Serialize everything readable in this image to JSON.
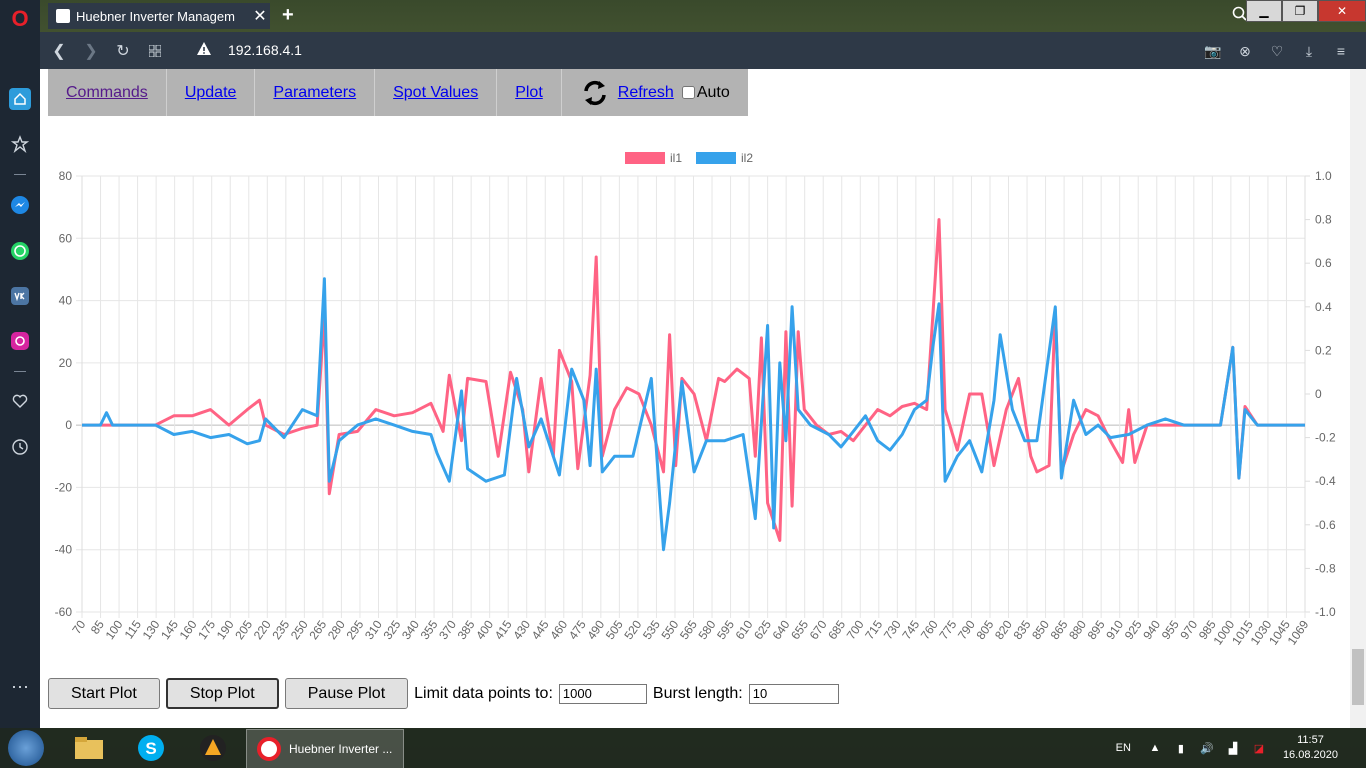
{
  "browser": {
    "tab_title": "Huebner Inverter Managem",
    "url": "192.168.4.1"
  },
  "nav": {
    "items": [
      "Commands",
      "Update",
      "Parameters",
      "Spot Values",
      "Plot"
    ],
    "refresh_label": "Refresh",
    "auto_label": "Auto",
    "auto_checked": false
  },
  "page": {
    "heading": "Plot"
  },
  "chart_data": {
    "type": "line",
    "legend_position": "top-center",
    "grid": true,
    "y_left": {
      "ticks": [
        80,
        60,
        40,
        20,
        0,
        -20,
        -40,
        -60
      ],
      "range": [
        -60,
        80
      ]
    },
    "y_right": {
      "ticks": [
        "1.0",
        "0.8",
        "0.6",
        "0.4",
        "0.2",
        "0",
        "-0.2",
        "-0.4",
        "-0.6",
        "-0.8",
        "-1.0"
      ],
      "range": [
        -1.0,
        1.0
      ]
    },
    "x": {
      "range": [
        70,
        1069
      ],
      "tick_labels": [
        "70",
        "85",
        "100",
        "115",
        "130",
        "145",
        "160",
        "175",
        "190",
        "205",
        "220",
        "235",
        "250",
        "265",
        "280",
        "295",
        "310",
        "325",
        "340",
        "355",
        "370",
        "385",
        "400",
        "415",
        "430",
        "445",
        "460",
        "475",
        "490",
        "505",
        "520",
        "535",
        "550",
        "565",
        "580",
        "595",
        "610",
        "625",
        "640",
        "655",
        "670",
        "685",
        "700",
        "715",
        "730",
        "745",
        "760",
        "775",
        "790",
        "805",
        "820",
        "835",
        "850",
        "865",
        "880",
        "895",
        "910",
        "925",
        "940",
        "955",
        "970",
        "985",
        "1000",
        "1015",
        "1030",
        "1045",
        "1069"
      ]
    },
    "series": [
      {
        "name": "il1",
        "color": "#ff6384",
        "points": [
          [
            70,
            0
          ],
          [
            85,
            0
          ],
          [
            100,
            0
          ],
          [
            130,
            0
          ],
          [
            145,
            3
          ],
          [
            160,
            3
          ],
          [
            175,
            5
          ],
          [
            190,
            0
          ],
          [
            205,
            5
          ],
          [
            215,
            8
          ],
          [
            220,
            0
          ],
          [
            235,
            -3
          ],
          [
            250,
            -1
          ],
          [
            262,
            0
          ],
          [
            268,
            36
          ],
          [
            272,
            -22
          ],
          [
            280,
            -3
          ],
          [
            295,
            -2
          ],
          [
            310,
            5
          ],
          [
            325,
            3
          ],
          [
            340,
            4
          ],
          [
            355,
            7
          ],
          [
            365,
            -2
          ],
          [
            370,
            16
          ],
          [
            380,
            -5
          ],
          [
            385,
            15
          ],
          [
            400,
            14
          ],
          [
            410,
            -10
          ],
          [
            420,
            17
          ],
          [
            430,
            5
          ],
          [
            435,
            -15
          ],
          [
            445,
            15
          ],
          [
            455,
            -10
          ],
          [
            460,
            24
          ],
          [
            470,
            14
          ],
          [
            475,
            -14
          ],
          [
            485,
            16
          ],
          [
            490,
            54
          ],
          [
            495,
            -10
          ],
          [
            505,
            5
          ],
          [
            515,
            12
          ],
          [
            525,
            10
          ],
          [
            535,
            0
          ],
          [
            545,
            -15
          ],
          [
            550,
            29
          ],
          [
            555,
            -13
          ],
          [
            560,
            15
          ],
          [
            570,
            10
          ],
          [
            580,
            -5
          ],
          [
            590,
            15
          ],
          [
            595,
            14
          ],
          [
            605,
            18
          ],
          [
            615,
            15
          ],
          [
            620,
            -10
          ],
          [
            625,
            28
          ],
          [
            630,
            -25
          ],
          [
            640,
            -37
          ],
          [
            645,
            30
          ],
          [
            650,
            -26
          ],
          [
            655,
            30
          ],
          [
            660,
            5
          ],
          [
            670,
            0
          ],
          [
            680,
            -3
          ],
          [
            690,
            -2
          ],
          [
            700,
            -5
          ],
          [
            710,
            0
          ],
          [
            720,
            5
          ],
          [
            730,
            3
          ],
          [
            740,
            6
          ],
          [
            750,
            7
          ],
          [
            760,
            5
          ],
          [
            765,
            35
          ],
          [
            770,
            66
          ],
          [
            775,
            5
          ],
          [
            785,
            -8
          ],
          [
            795,
            10
          ],
          [
            805,
            10
          ],
          [
            815,
            -13
          ],
          [
            825,
            5
          ],
          [
            835,
            15
          ],
          [
            845,
            -10
          ],
          [
            850,
            -15
          ],
          [
            860,
            -13
          ],
          [
            865,
            37
          ],
          [
            870,
            -15
          ],
          [
            880,
            -3
          ],
          [
            890,
            5
          ],
          [
            900,
            3
          ],
          [
            910,
            -5
          ],
          [
            920,
            -12
          ],
          [
            925,
            5
          ],
          [
            930,
            -12
          ],
          [
            940,
            0
          ],
          [
            955,
            0
          ],
          [
            970,
            0
          ],
          [
            985,
            0
          ],
          [
            1000,
            0
          ],
          [
            1010,
            25
          ],
          [
            1015,
            -17
          ],
          [
            1020,
            6
          ],
          [
            1030,
            0
          ],
          [
            1045,
            0
          ],
          [
            1069,
            0
          ]
        ]
      },
      {
        "name": "il2",
        "color": "#36a2eb",
        "points": [
          [
            70,
            0
          ],
          [
            85,
            0
          ],
          [
            90,
            4
          ],
          [
            95,
            0
          ],
          [
            115,
            0
          ],
          [
            130,
            0
          ],
          [
            145,
            -3
          ],
          [
            160,
            -2
          ],
          [
            175,
            -4
          ],
          [
            190,
            -3
          ],
          [
            205,
            -6
          ],
          [
            215,
            -5
          ],
          [
            220,
            2
          ],
          [
            235,
            -4
          ],
          [
            250,
            5
          ],
          [
            262,
            3
          ],
          [
            268,
            47
          ],
          [
            272,
            -18
          ],
          [
            280,
            -5
          ],
          [
            295,
            0
          ],
          [
            310,
            2
          ],
          [
            325,
            0
          ],
          [
            340,
            -2
          ],
          [
            355,
            -3
          ],
          [
            360,
            -9
          ],
          [
            370,
            -18
          ],
          [
            380,
            11
          ],
          [
            385,
            -14
          ],
          [
            400,
            -18
          ],
          [
            415,
            -16
          ],
          [
            425,
            15
          ],
          [
            435,
            -7
          ],
          [
            445,
            2
          ],
          [
            460,
            -16
          ],
          [
            470,
            18
          ],
          [
            480,
            8
          ],
          [
            485,
            -13
          ],
          [
            490,
            18
          ],
          [
            495,
            -15
          ],
          [
            505,
            -10
          ],
          [
            520,
            -10
          ],
          [
            535,
            15
          ],
          [
            545,
            -40
          ],
          [
            550,
            -25
          ],
          [
            560,
            14
          ],
          [
            570,
            -15
          ],
          [
            580,
            -5
          ],
          [
            595,
            -5
          ],
          [
            610,
            -3
          ],
          [
            620,
            -30
          ],
          [
            630,
            32
          ],
          [
            635,
            -33
          ],
          [
            640,
            20
          ],
          [
            645,
            -5
          ],
          [
            650,
            38
          ],
          [
            655,
            5
          ],
          [
            665,
            0
          ],
          [
            680,
            -3
          ],
          [
            690,
            -7
          ],
          [
            700,
            -2
          ],
          [
            710,
            3
          ],
          [
            720,
            -5
          ],
          [
            730,
            -8
          ],
          [
            740,
            -3
          ],
          [
            750,
            5
          ],
          [
            760,
            8
          ],
          [
            765,
            25
          ],
          [
            770,
            39
          ],
          [
            775,
            -18
          ],
          [
            785,
            -10
          ],
          [
            795,
            -5
          ],
          [
            805,
            -15
          ],
          [
            815,
            8
          ],
          [
            820,
            29
          ],
          [
            830,
            5
          ],
          [
            840,
            -5
          ],
          [
            850,
            -5
          ],
          [
            865,
            38
          ],
          [
            870,
            -17
          ],
          [
            880,
            8
          ],
          [
            890,
            -3
          ],
          [
            900,
            0
          ],
          [
            910,
            -4
          ],
          [
            925,
            -3
          ],
          [
            940,
            0
          ],
          [
            955,
            2
          ],
          [
            970,
            0
          ],
          [
            985,
            0
          ],
          [
            1000,
            0
          ],
          [
            1010,
            25
          ],
          [
            1015,
            -17
          ],
          [
            1020,
            5
          ],
          [
            1030,
            0
          ],
          [
            1045,
            0
          ],
          [
            1069,
            0
          ]
        ]
      }
    ]
  },
  "controls": {
    "start_label": "Start Plot",
    "stop_label": "Stop Plot",
    "pause_label": "Pause Plot",
    "limit_label": "Limit data points to:",
    "limit_value": "1000",
    "burst_label": "Burst length:",
    "burst_value": "10"
  },
  "taskbar": {
    "active_window": "Huebner Inverter ...",
    "language": "EN",
    "time": "11:57",
    "date": "16.08.2020"
  }
}
